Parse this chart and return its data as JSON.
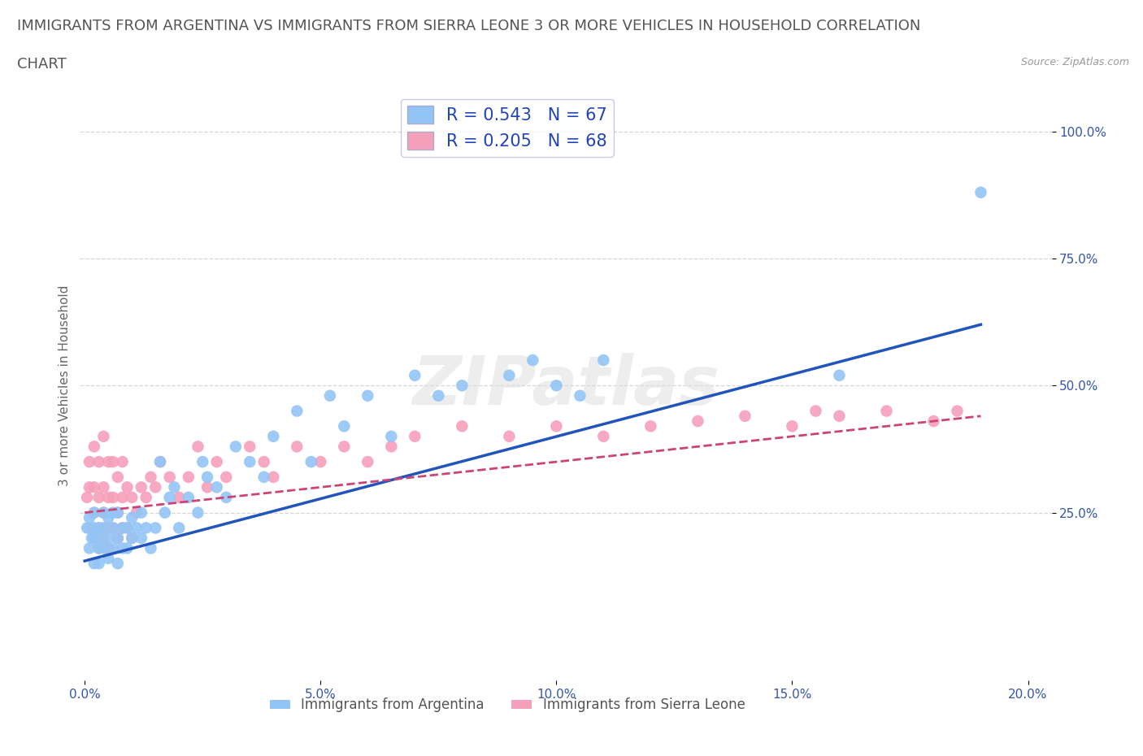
{
  "title_line1": "IMMIGRANTS FROM ARGENTINA VS IMMIGRANTS FROM SIERRA LEONE 3 OR MORE VEHICLES IN HOUSEHOLD CORRELATION",
  "title_line2": "CHART",
  "source": "Source: ZipAtlas.com",
  "ylabel": "3 or more Vehicles in Household",
  "xlim": [
    -0.001,
    0.205
  ],
  "ylim": [
    -0.08,
    1.08
  ],
  "xtick_labels": [
    "0.0%",
    "5.0%",
    "10.0%",
    "15.0%",
    "20.0%"
  ],
  "xtick_vals": [
    0.0,
    0.05,
    0.1,
    0.15,
    0.2
  ],
  "ytick_labels": [
    "100.0%",
    "75.0%",
    "50.0%",
    "25.0%"
  ],
  "ytick_vals": [
    1.0,
    0.75,
    0.5,
    0.25
  ],
  "argentina_color": "#92c5f5",
  "sierra_leone_color": "#f5a0ba",
  "argentina_line_color": "#2255bb",
  "sierra_leone_line_color": "#cc4477",
  "argentina_R": 0.543,
  "argentina_N": 67,
  "sierra_leone_R": 0.205,
  "sierra_leone_N": 68,
  "legend_text_color": "#2244bb",
  "watermark": "ZIPatlas",
  "legend_label1": "Immigrants from Argentina",
  "legend_label2": "Immigrants from Sierra Leone",
  "argentina_x": [
    0.0005,
    0.001,
    0.001,
    0.0015,
    0.002,
    0.002,
    0.002,
    0.002,
    0.003,
    0.003,
    0.003,
    0.003,
    0.004,
    0.004,
    0.004,
    0.005,
    0.005,
    0.005,
    0.006,
    0.006,
    0.006,
    0.007,
    0.007,
    0.007,
    0.008,
    0.008,
    0.009,
    0.009,
    0.01,
    0.01,
    0.011,
    0.012,
    0.012,
    0.013,
    0.014,
    0.015,
    0.016,
    0.017,
    0.018,
    0.019,
    0.02,
    0.022,
    0.024,
    0.025,
    0.026,
    0.028,
    0.03,
    0.032,
    0.035,
    0.038,
    0.04,
    0.045,
    0.048,
    0.052,
    0.055,
    0.06,
    0.065,
    0.07,
    0.075,
    0.08,
    0.09,
    0.095,
    0.1,
    0.105,
    0.11,
    0.16,
    0.19
  ],
  "argentina_y": [
    0.22,
    0.18,
    0.24,
    0.2,
    0.15,
    0.2,
    0.22,
    0.25,
    0.15,
    0.18,
    0.2,
    0.22,
    0.18,
    0.22,
    0.25,
    0.16,
    0.2,
    0.24,
    0.18,
    0.22,
    0.25,
    0.15,
    0.2,
    0.25,
    0.18,
    0.22,
    0.18,
    0.22,
    0.2,
    0.24,
    0.22,
    0.2,
    0.25,
    0.22,
    0.18,
    0.22,
    0.35,
    0.25,
    0.28,
    0.3,
    0.22,
    0.28,
    0.25,
    0.35,
    0.32,
    0.3,
    0.28,
    0.38,
    0.35,
    0.32,
    0.4,
    0.45,
    0.35,
    0.48,
    0.42,
    0.48,
    0.4,
    0.52,
    0.48,
    0.5,
    0.52,
    0.55,
    0.5,
    0.48,
    0.55,
    0.52,
    0.88
  ],
  "sierra_leone_x": [
    0.0005,
    0.001,
    0.001,
    0.001,
    0.002,
    0.002,
    0.002,
    0.002,
    0.003,
    0.003,
    0.003,
    0.003,
    0.004,
    0.004,
    0.004,
    0.004,
    0.005,
    0.005,
    0.005,
    0.005,
    0.006,
    0.006,
    0.006,
    0.007,
    0.007,
    0.007,
    0.008,
    0.008,
    0.008,
    0.009,
    0.009,
    0.01,
    0.01,
    0.011,
    0.012,
    0.013,
    0.014,
    0.015,
    0.016,
    0.018,
    0.02,
    0.022,
    0.024,
    0.026,
    0.028,
    0.03,
    0.035,
    0.038,
    0.04,
    0.045,
    0.05,
    0.055,
    0.06,
    0.065,
    0.07,
    0.08,
    0.09,
    0.1,
    0.11,
    0.12,
    0.13,
    0.14,
    0.15,
    0.155,
    0.16,
    0.17,
    0.18,
    0.185
  ],
  "sierra_leone_y": [
    0.28,
    0.22,
    0.3,
    0.35,
    0.2,
    0.25,
    0.3,
    0.38,
    0.18,
    0.22,
    0.28,
    0.35,
    0.2,
    0.25,
    0.3,
    0.4,
    0.18,
    0.22,
    0.28,
    0.35,
    0.22,
    0.28,
    0.35,
    0.2,
    0.25,
    0.32,
    0.22,
    0.28,
    0.35,
    0.22,
    0.3,
    0.2,
    0.28,
    0.25,
    0.3,
    0.28,
    0.32,
    0.3,
    0.35,
    0.32,
    0.28,
    0.32,
    0.38,
    0.3,
    0.35,
    0.32,
    0.38,
    0.35,
    0.32,
    0.38,
    0.35,
    0.38,
    0.35,
    0.38,
    0.4,
    0.42,
    0.4,
    0.42,
    0.4,
    0.42,
    0.43,
    0.44,
    0.42,
    0.45,
    0.44,
    0.45,
    0.43,
    0.45
  ],
  "argentina_trend": [
    0.155,
    0.62
  ],
  "sierra_leone_trend": [
    0.25,
    0.44
  ],
  "background_color": "#ffffff",
  "grid_color": "#cccccc",
  "title_fontsize": 13,
  "axis_label_fontsize": 11,
  "tick_fontsize": 11,
  "legend_fontsize": 15
}
